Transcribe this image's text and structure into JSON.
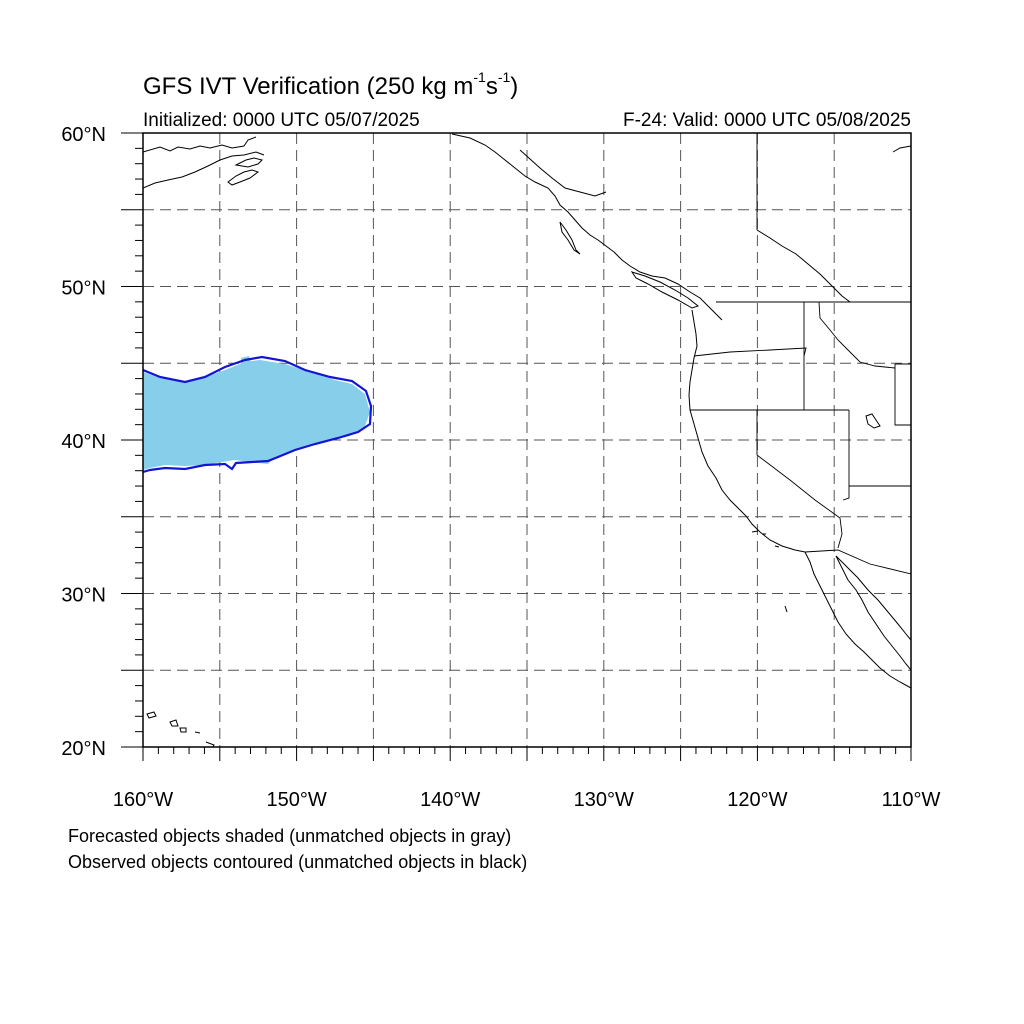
{
  "title": {
    "main": "GFS IVT Verification (250 kg m",
    "sup1": "-1",
    "mid": "s",
    "sup2": "-1",
    "end": ")"
  },
  "initialized": "Initialized: 0000 UTC 05/07/2025",
  "valid": "F-24: Valid: 0000 UTC 05/08/2025",
  "footnotes": {
    "forecast": "Forecasted objects shaded (unmatched objects in gray)",
    "observed": "Observed objects contoured (unmatched objects in black)"
  },
  "map": {
    "projection": "cylindrical equidistant",
    "lon_range": [
      -160,
      -110
    ],
    "lat_range": [
      20,
      60
    ],
    "lat_ticks": [
      {
        "value": 60,
        "label": "60°N"
      },
      {
        "value": 50,
        "label": "50°N"
      },
      {
        "value": 40,
        "label": "40°N"
      },
      {
        "value": 30,
        "label": "30°N"
      },
      {
        "value": 20,
        "label": "20°N"
      }
    ],
    "lon_ticks": [
      {
        "value": -160,
        "label": "160°W"
      },
      {
        "value": -150,
        "label": "150°W"
      },
      {
        "value": -140,
        "label": "140°W"
      },
      {
        "value": -130,
        "label": "130°W"
      },
      {
        "value": -120,
        "label": "120°W"
      },
      {
        "value": -110,
        "label": "110°W"
      }
    ],
    "grid_spacing_deg": 5,
    "grid_style": "dashed",
    "forecast_object_color": "#87ceeb",
    "observed_contour_color": "#1414d4",
    "coastline_color": "#000000"
  }
}
